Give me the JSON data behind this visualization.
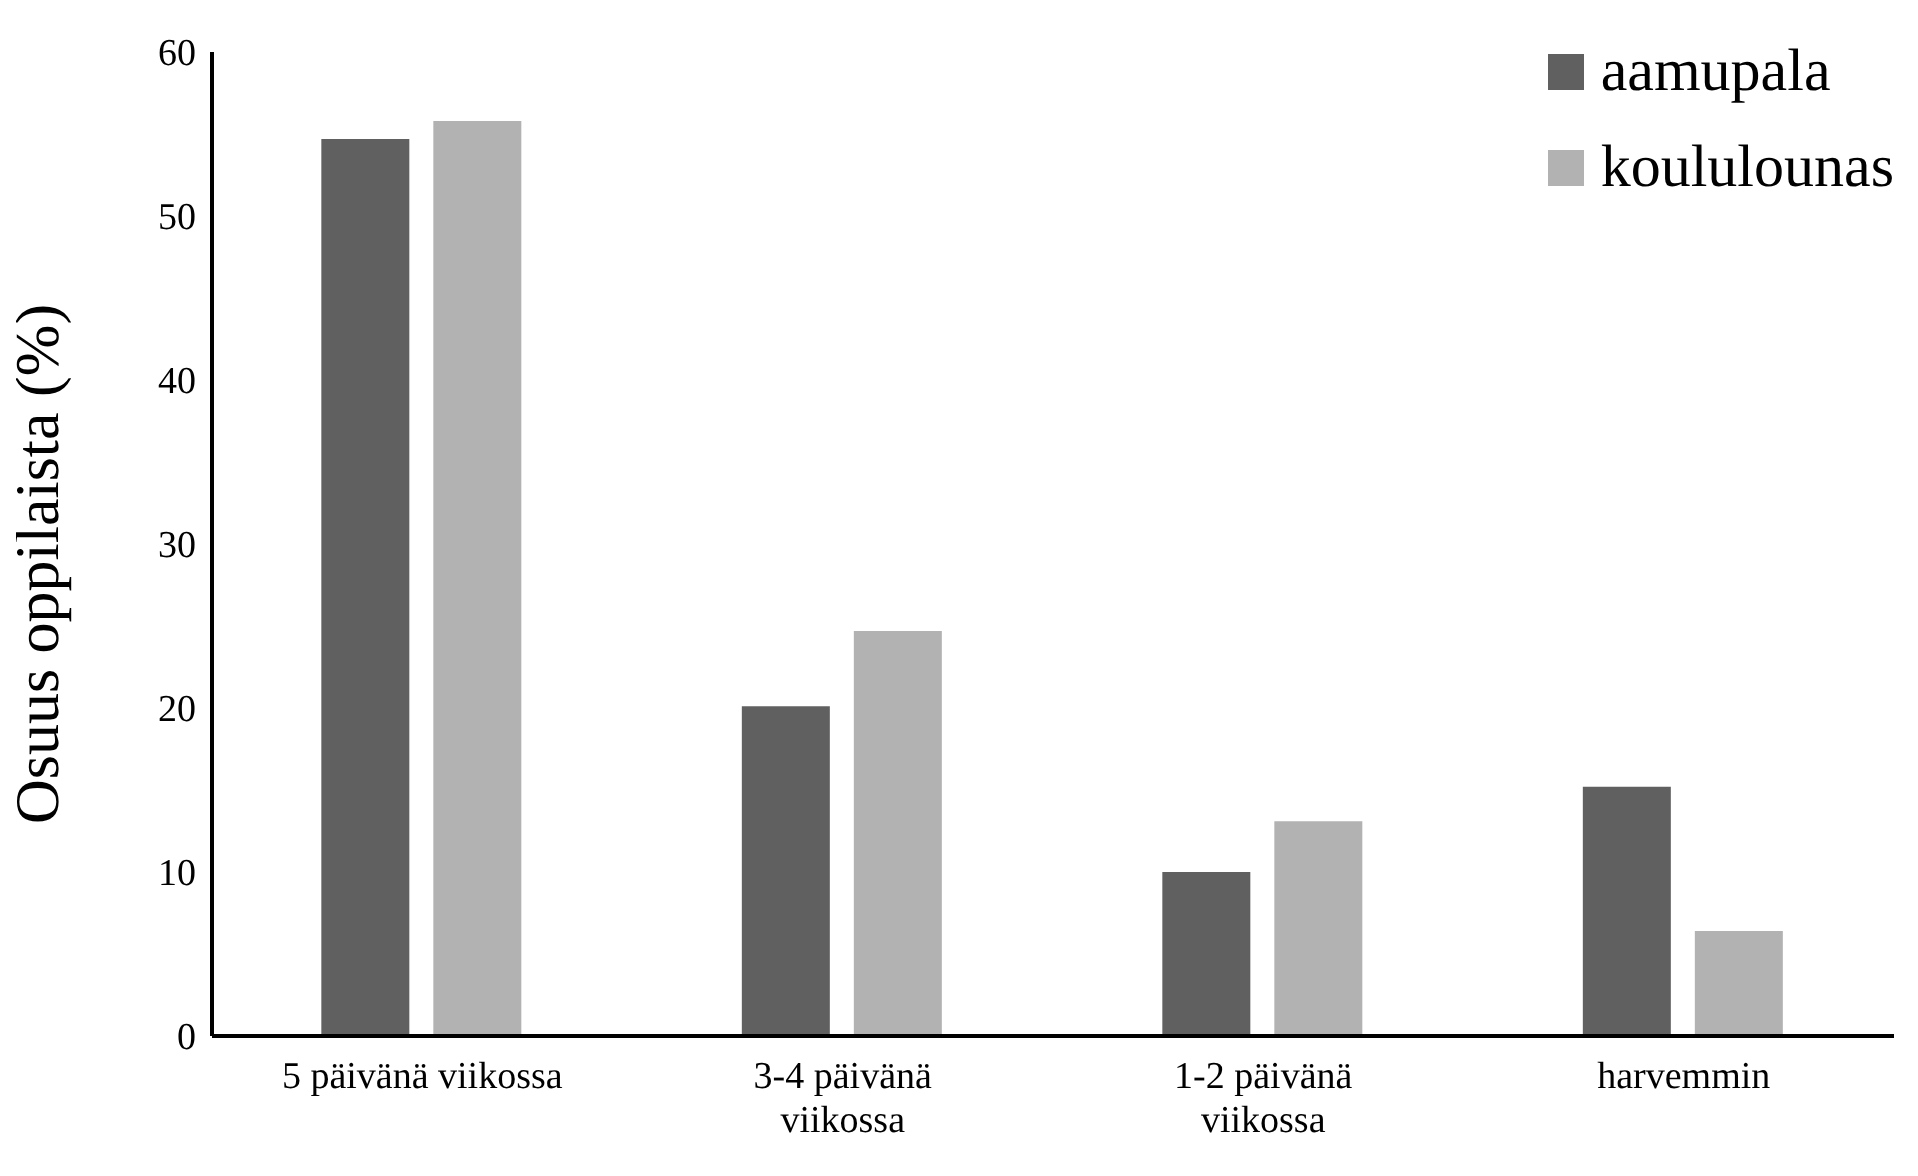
{
  "chart_data": {
    "type": "bar",
    "ylabel": "Osuus oppilaista (%)",
    "categories": [
      "5 päivänä viikossa",
      "3-4 päivänä viikossa",
      "1-2 päivänä viikossa",
      "harvemmin"
    ],
    "series": [
      {
        "name": "aamupala",
        "color": "#606060",
        "values": [
          54.7,
          20.1,
          10.0,
          15.2
        ]
      },
      {
        "name": "koululounas",
        "color": "#b2b2b2",
        "values": [
          55.8,
          24.7,
          13.1,
          6.4
        ]
      }
    ],
    "ylim": [
      0,
      60
    ],
    "yticks": [
      0,
      10,
      20,
      30,
      40,
      50,
      60
    ],
    "grid": false,
    "legend": "top right"
  }
}
